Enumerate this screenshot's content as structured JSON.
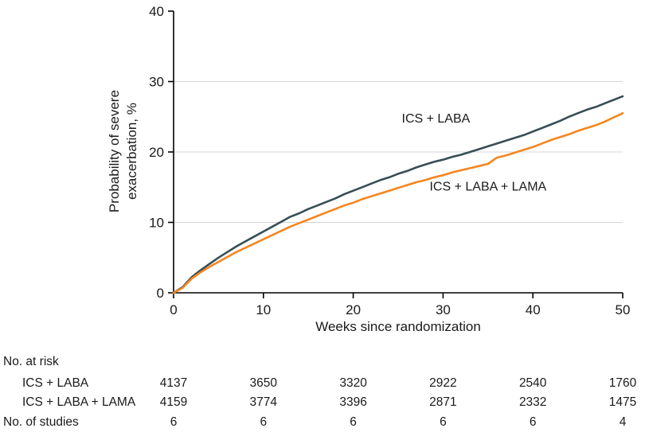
{
  "chart_data": {
    "type": "line",
    "title": "",
    "xlabel": "Weeks since randomization",
    "ylabel": "Probability of severe exacerbation, %",
    "ylabel_lines": [
      "Probability of severe",
      "exacerbation, %"
    ],
    "xlim": [
      0,
      50
    ],
    "ylim": [
      0,
      40
    ],
    "xticks": [
      0,
      10,
      20,
      30,
      40,
      50
    ],
    "yticks": [
      0,
      10,
      20,
      30,
      40
    ],
    "gridlines_y": [
      10,
      20,
      30
    ],
    "grid": "horizontal-light",
    "legend_position": "inline-curve-labels",
    "colors": {
      "ics_laba": "#374e55",
      "ics_laba_lama": "#f5861f",
      "gridline": "#d4d4d4",
      "axis": "#000000",
      "text": "#1a1a1a"
    },
    "x": [
      0,
      1,
      2,
      3,
      4,
      5,
      6,
      7,
      8,
      9,
      10,
      11,
      12,
      13,
      14,
      15,
      16,
      17,
      18,
      19,
      20,
      21,
      22,
      23,
      24,
      25,
      26,
      27,
      28,
      29,
      30,
      31,
      32,
      33,
      34,
      35,
      36,
      37,
      38,
      39,
      40,
      41,
      42,
      43,
      44,
      45,
      46,
      47,
      48,
      49,
      50
    ],
    "series": [
      {
        "id": "ics-laba",
        "name": "ICS + LABA",
        "color_key": "ics_laba",
        "values": [
          0,
          0.8,
          2.2,
          3.2,
          4.1,
          5.0,
          5.8,
          6.6,
          7.3,
          8.0,
          8.7,
          9.4,
          10.1,
          10.8,
          11.3,
          11.9,
          12.4,
          12.9,
          13.4,
          14.0,
          14.5,
          15.0,
          15.5,
          16.0,
          16.4,
          16.9,
          17.3,
          17.8,
          18.2,
          18.6,
          18.9,
          19.3,
          19.6,
          20.0,
          20.4,
          20.8,
          21.2,
          21.6,
          22.0,
          22.4,
          22.9,
          23.4,
          23.9,
          24.4,
          25.0,
          25.5,
          26.0,
          26.4,
          26.9,
          27.4,
          27.9
        ],
        "label_pos": {
          "x": 25.4,
          "y": 24.2
        }
      },
      {
        "id": "ics-laba-lama",
        "name": "ICS + LABA + LAMA",
        "color_key": "ics_laba_lama",
        "values": [
          0,
          0.7,
          2.0,
          2.9,
          3.7,
          4.4,
          5.1,
          5.8,
          6.4,
          7.0,
          7.6,
          8.2,
          8.8,
          9.4,
          9.9,
          10.4,
          10.9,
          11.4,
          11.9,
          12.4,
          12.8,
          13.3,
          13.7,
          14.1,
          14.5,
          14.9,
          15.3,
          15.7,
          16.0,
          16.4,
          16.7,
          17.1,
          17.4,
          17.7,
          18.0,
          18.3,
          19.2,
          19.5,
          19.9,
          20.3,
          20.7,
          21.2,
          21.7,
          22.1,
          22.5,
          23.0,
          23.4,
          23.8,
          24.3,
          24.9,
          25.5
        ],
        "label_pos": {
          "x": 28.5,
          "y": 14.5
        }
      }
    ],
    "at_risk": {
      "title": "No. at risk",
      "weeks": [
        0,
        10,
        20,
        30,
        40,
        50
      ],
      "rows": [
        {
          "label": "ICS + LABA",
          "values": [
            4137,
            3650,
            3320,
            2922,
            2540,
            1760
          ]
        },
        {
          "label": "ICS + LABA + LAMA",
          "values": [
            4159,
            3774,
            3396,
            2871,
            2332,
            1475
          ]
        }
      ],
      "studies_row": {
        "label": "No. of studies",
        "values": [
          6,
          6,
          6,
          6,
          6,
          4
        ]
      }
    }
  }
}
